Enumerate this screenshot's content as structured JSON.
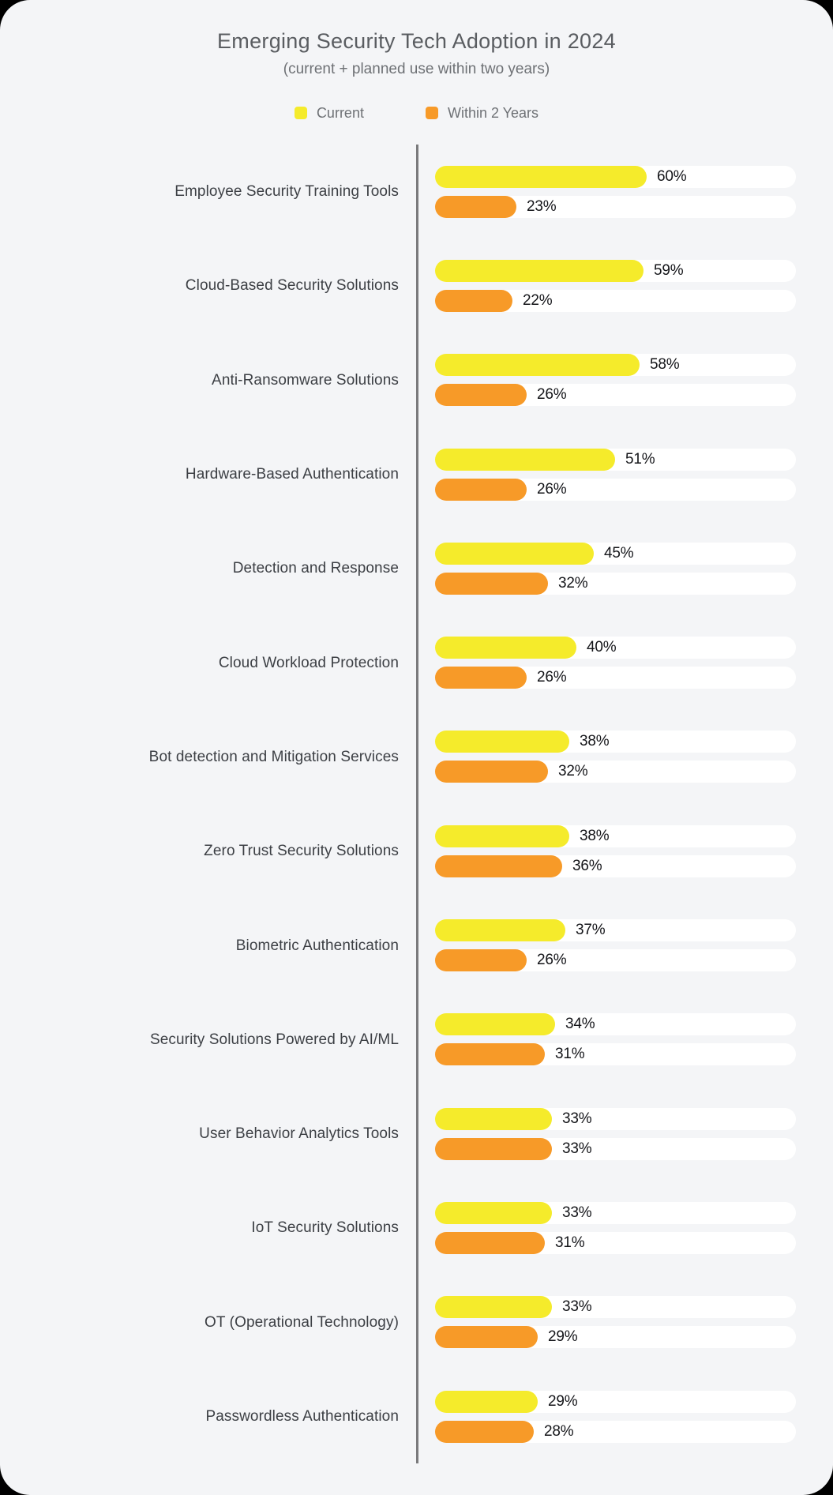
{
  "header": {
    "title": "Emerging Security Tech Adoption in 2024",
    "subtitle": "(current + planned use within two years)"
  },
  "legend": {
    "current_label": "Current",
    "planned_label": "Within 2 Years"
  },
  "colors": {
    "current": "#F5EB2B",
    "planned": "#F79A28",
    "track": "#FFFFFF",
    "card_bg": "#F4F5F7",
    "page_bg": "#000000",
    "axis_line": "#7A7A7C"
  },
  "value_suffix": "%",
  "chart_data": {
    "type": "bar",
    "orientation": "horizontal",
    "title": "Emerging Security Tech Adoption in 2024",
    "subtitle": "(current + planned use within two years)",
    "xlabel": "",
    "ylabel": "",
    "xlim": [
      0,
      100
    ],
    "grid": false,
    "legend_position": "top",
    "categories": [
      "Employee Security Training Tools",
      "Cloud-Based Security Solutions",
      "Anti-Ransomware Solutions",
      "Hardware-Based Authentication",
      "Detection and Response",
      "Cloud Workload Protection",
      "Bot detection and Mitigation Services",
      "Zero Trust Security Solutions",
      "Biometric Authentication",
      "Security Solutions Powered by AI/ML",
      "User Behavior Analytics Tools",
      "IoT Security Solutions",
      "OT (Operational Technology)",
      "Passwordless Authentication"
    ],
    "series": [
      {
        "name": "Current",
        "values": [
          60,
          59,
          58,
          51,
          45,
          40,
          38,
          38,
          37,
          34,
          33,
          33,
          33,
          29
        ]
      },
      {
        "name": "Within 2 Years",
        "values": [
          23,
          22,
          26,
          26,
          32,
          26,
          32,
          36,
          26,
          31,
          33,
          31,
          29,
          28
        ]
      }
    ]
  }
}
